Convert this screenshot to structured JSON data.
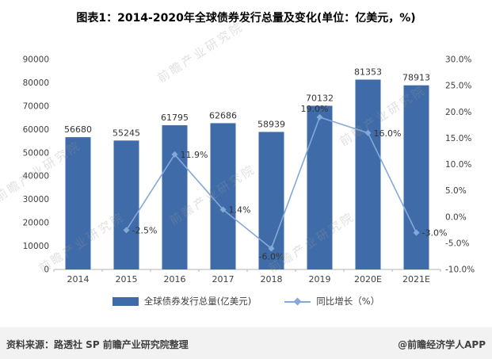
{
  "title": "图表1：2014-2020年全球债券发行总量及变化(单位：亿美元，%)",
  "watermark": "前瞻产业研究院",
  "legend": {
    "bar": "全球债券发行总量(亿美元)",
    "line": "同比增长（%）"
  },
  "footer": {
    "source": "资料来源：路透社 SP 前瞻产业研究院整理",
    "brand": "@前瞻经济学人APP"
  },
  "colors": {
    "bar": "#3f6ba8",
    "line": "#84a9d9",
    "axis_text": "#404040",
    "label_text": "#333333"
  },
  "chart_data": {
    "type": "bar+line",
    "title": "图表1：2014-2020年全球债券发行总量及变化(单位：亿美元，%)",
    "categories": [
      "2014",
      "2015",
      "2016",
      "2017",
      "2018",
      "2019",
      "2020E",
      "2021E"
    ],
    "series": [
      {
        "name": "全球债券发行总量(亿美元)",
        "type": "bar",
        "axis": "left",
        "color": "#3f6ba8",
        "values": [
          56680,
          55245,
          61795,
          62686,
          58939,
          70132,
          81353,
          78913
        ],
        "labels": [
          "56680",
          "55245",
          "61795",
          "62686",
          "58939",
          "70132",
          "81353",
          "78913"
        ]
      },
      {
        "name": "同比增长（%）",
        "type": "line",
        "axis": "right",
        "color": "#84a9d9",
        "values": [
          null,
          -2.5,
          11.9,
          1.4,
          -6.0,
          19.0,
          16.0,
          -3.0
        ],
        "labels": [
          "",
          "-2.5%",
          "11.9%",
          "1.4%",
          "-6.0%",
          "19.0%",
          "16.0%",
          "-3.0%"
        ]
      }
    ],
    "left_axis": {
      "min": 0,
      "max": 90000,
      "step": 10000,
      "ticks": [
        "0",
        "10000",
        "20000",
        "30000",
        "40000",
        "50000",
        "60000",
        "70000",
        "80000",
        "90000"
      ]
    },
    "right_axis": {
      "min": -10,
      "max": 30,
      "step": 5,
      "ticks": [
        "-10.0%",
        "-5.0%",
        "0.0%",
        "5.0%",
        "10.0%",
        "15.0%",
        "20.0%",
        "25.0%",
        "30.0%"
      ]
    },
    "grid": false,
    "legend_position": "bottom"
  }
}
